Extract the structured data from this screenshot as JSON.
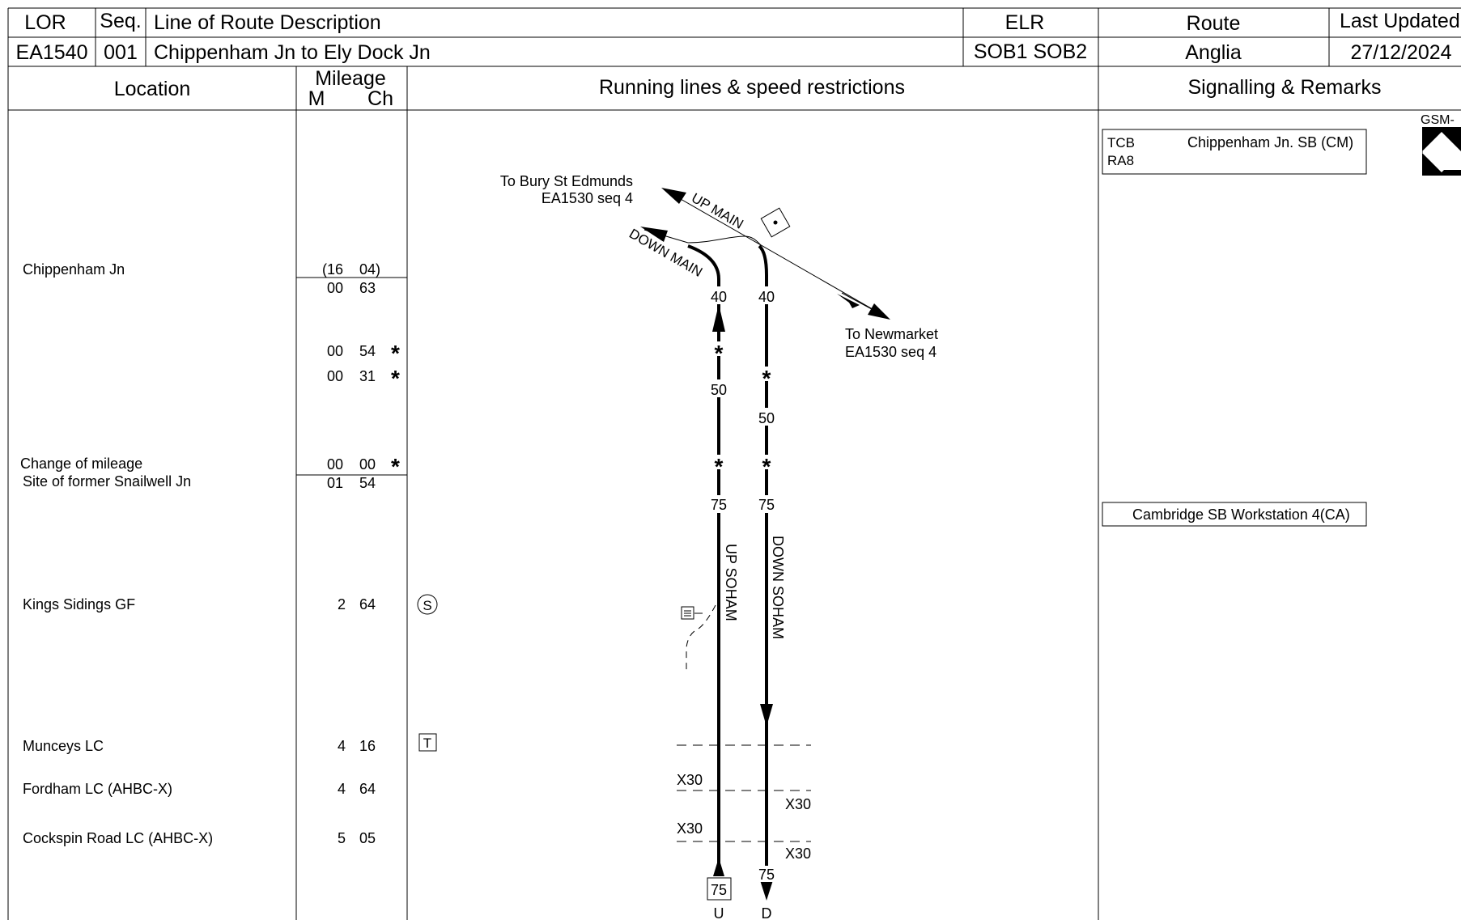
{
  "header": {
    "col_lor": "LOR",
    "col_seq": "Seq.",
    "col_desc": "Line of Route Description",
    "col_elr": "ELR",
    "col_route": "Route",
    "col_updated": "Last Updated",
    "lor": "EA1540",
    "seq": "001",
    "description": "Chippenham Jn to Ely Dock Jn",
    "elr": "SOB1 SOB2",
    "route": "Anglia",
    "updated": "27/12/2024"
  },
  "columns": {
    "location": "Location",
    "mileage": "Mileage",
    "miles": "M",
    "chains": "Ch",
    "running": "Running lines & speed restrictions",
    "signalling": "Signalling & Remarks"
  },
  "locations": [
    {
      "name": "Chippenham Jn"
    },
    {
      "name": "Change of mileage"
    },
    {
      "name": "Site of former Snailwell Jn"
    },
    {
      "name": "Kings Sidings GF"
    },
    {
      "name": "Munceys LC"
    },
    {
      "name": "Fordham LC (AHBC-X)"
    },
    {
      "name": "Cockspin Road LC (AHBC-X)"
    }
  ],
  "mileages": [
    {
      "m": "(16",
      "ch": "04)",
      "star": ""
    },
    {
      "m": "00",
      "ch": "63",
      "star": ""
    },
    {
      "m": "00",
      "ch": "54",
      "star": "*"
    },
    {
      "m": "00",
      "ch": "31",
      "star": "*"
    },
    {
      "m": "00",
      "ch": "00",
      "star": "*"
    },
    {
      "m": "01",
      "ch": "54",
      "star": ""
    },
    {
      "m": "2",
      "ch": "64",
      "star": ""
    },
    {
      "m": "4",
      "ch": "16",
      "star": ""
    },
    {
      "m": "4",
      "ch": "64",
      "star": ""
    },
    {
      "m": "5",
      "ch": "05",
      "star": ""
    }
  ],
  "markers": {
    "kings_sidings": "S",
    "munceys": "T"
  },
  "diagram": {
    "to_bury": "To Bury St Edmunds",
    "to_bury_ref": "EA1530  seq  4",
    "to_newmarket": "To Newmarket",
    "to_newmarket_ref": "EA1530  seq  4",
    "up_main": "UP MAIN",
    "down_main": "DOWN MAIN",
    "up_soham": "UP SOHAM",
    "down_soham": "DOWN SOHAM",
    "up_speeds": [
      "40",
      "50",
      "75"
    ],
    "down_speeds": [
      "40",
      "50",
      "75"
    ],
    "star": "*",
    "lc_speeds": [
      "X30",
      "X30",
      "X30",
      "X30"
    ],
    "bottom_up_speed": "75",
    "bottom_down_speed": "75",
    "bottom_up_label": "U",
    "bottom_down_label": "D"
  },
  "remarks": {
    "box1_tcb": "TCB",
    "box1_ra": "RA8",
    "box1_box": "Chippenham Jn. SB (CM)",
    "box2": "Cambridge SB Workstation 4(CA)",
    "gsm": "GSM-"
  }
}
